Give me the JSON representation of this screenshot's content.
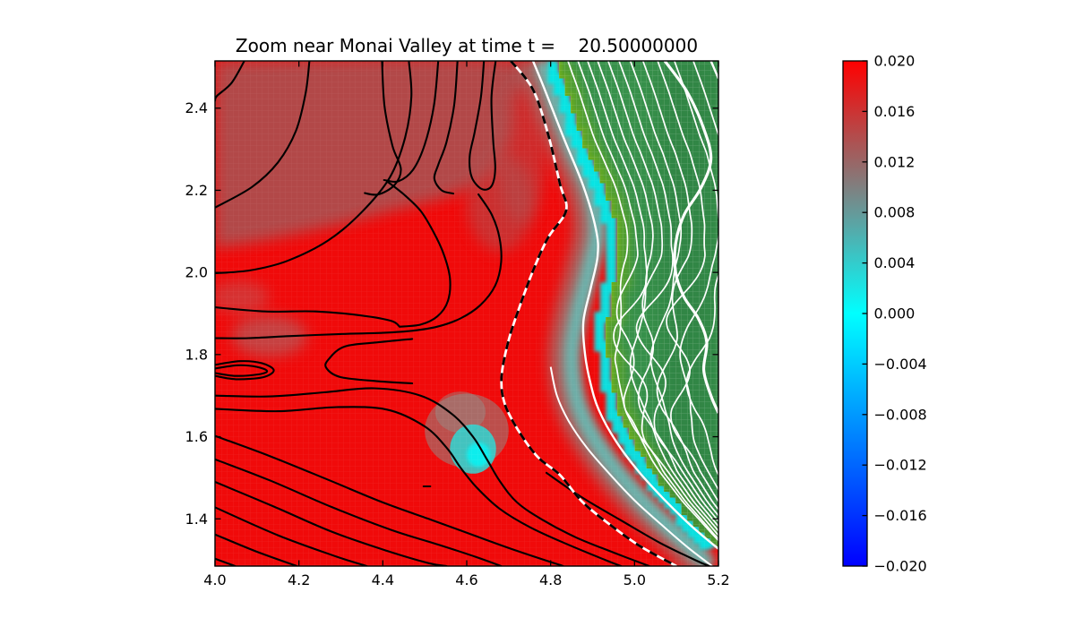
{
  "chart_data": {
    "type": "heatmap",
    "title": "Zoom near Monai Valley at time t =    20.50000000",
    "xlabel": "",
    "ylabel": "",
    "xlim": [
      4.0,
      5.2
    ],
    "ylim": [
      1.285,
      2.515
    ],
    "x_tick_values": [
      4.0,
      4.2,
      4.4,
      4.6,
      4.8,
      5.0,
      5.2
    ],
    "x_tick_labels": [
      "4.0",
      "4.2",
      "4.4",
      "4.6",
      "4.8",
      "5.0",
      "5.2"
    ],
    "y_tick_values": [
      1.4,
      1.6,
      1.8,
      2.0,
      2.2,
      2.4
    ],
    "y_tick_labels": [
      "1.4",
      "1.6",
      "1.8",
      "2.0",
      "2.2",
      "2.4"
    ],
    "grid": "pcolor-mesh",
    "legend": "none",
    "colorbar": {
      "position": "right",
      "vmin": -0.02,
      "vmax": 0.02,
      "tick_values": [
        0.02,
        0.016,
        0.012,
        0.008,
        0.004,
        0.0,
        -0.004,
        -0.008,
        -0.012,
        -0.016,
        -0.02
      ],
      "tick_labels": [
        "0.020",
        "0.016",
        "0.012",
        "0.008",
        "0.004",
        "0.000",
        "−0.004",
        "−0.008",
        "−0.012",
        "−0.016",
        "−0.020"
      ],
      "gradient": [
        {
          "offset": 0.0,
          "color": "#ff0000"
        },
        {
          "offset": 0.5,
          "color": "#00ffff"
        },
        {
          "offset": 1.0,
          "color": "#0000ff"
        }
      ]
    },
    "colors": {
      "water_red": "#f00a0a",
      "water_high": "#b04b4b",
      "shore_gray": "#9c7370",
      "shore_teal": "#5fc4bd",
      "shore_cyan": "#05e9e9",
      "land_green": "#38914b",
      "land_edge_green": "#7ab513",
      "land_dark_green": "#2b7c40",
      "contour_water": "#000000",
      "contour_land": "#ffffff",
      "frame": "#000000"
    },
    "coast": [
      [
        4.815,
        2.515
      ],
      [
        4.84,
        2.445
      ],
      [
        4.878,
        2.325
      ],
      [
        4.932,
        2.205
      ],
      [
        4.96,
        2.105
      ],
      [
        4.963,
        2.045
      ],
      [
        4.948,
        1.955
      ],
      [
        4.934,
        1.878
      ],
      [
        4.938,
        1.8
      ],
      [
        4.95,
        1.728
      ],
      [
        4.963,
        1.668
      ],
      [
        4.994,
        1.598
      ],
      [
        5.042,
        1.52
      ],
      [
        5.1,
        1.443
      ],
      [
        5.152,
        1.385
      ],
      [
        5.2,
        1.33
      ]
    ],
    "dashed_shoreline": [
      [
        4.705,
        2.515
      ],
      [
        4.758,
        2.445
      ],
      [
        4.794,
        2.336
      ],
      [
        4.822,
        2.216
      ],
      [
        4.837,
        2.151
      ],
      [
        4.794,
        2.085
      ],
      [
        4.76,
        2.009
      ],
      [
        4.728,
        1.922
      ],
      [
        4.7,
        1.835
      ],
      [
        4.683,
        1.747
      ],
      [
        4.69,
        1.682
      ],
      [
        4.722,
        1.617
      ],
      [
        4.769,
        1.551
      ],
      [
        4.822,
        1.507
      ],
      [
        4.875,
        1.442
      ],
      [
        4.94,
        1.387
      ],
      [
        5.014,
        1.333
      ],
      [
        5.1,
        1.285
      ]
    ],
    "zero_contour": [
      [
        4.758,
        2.515
      ],
      [
        4.788,
        2.44
      ],
      [
        4.832,
        2.325
      ],
      [
        4.878,
        2.21
      ],
      [
        4.908,
        2.105
      ],
      [
        4.912,
        2.04
      ],
      [
        4.895,
        1.96
      ],
      [
        4.878,
        1.88
      ],
      [
        4.882,
        1.8
      ],
      [
        4.895,
        1.73
      ],
      [
        4.915,
        1.665
      ],
      [
        4.955,
        1.59
      ],
      [
        5.01,
        1.515
      ],
      [
        5.07,
        1.448
      ],
      [
        5.135,
        1.383
      ],
      [
        5.2,
        1.327
      ]
    ],
    "sub_contour": [
      [
        4.8,
        1.77
      ],
      [
        4.815,
        1.7
      ],
      [
        4.842,
        1.64
      ],
      [
        4.885,
        1.575
      ],
      [
        4.94,
        1.51
      ],
      [
        5.0,
        1.445
      ],
      [
        5.065,
        1.385
      ],
      [
        5.13,
        1.328
      ],
      [
        5.185,
        1.285
      ]
    ],
    "thick_land_contour": [
      [
        5.072,
        2.515
      ],
      [
        5.125,
        2.44
      ],
      [
        5.165,
        2.35
      ],
      [
        5.182,
        2.275
      ],
      [
        5.158,
        2.205
      ],
      [
        5.118,
        2.14
      ],
      [
        5.098,
        2.07
      ],
      [
        5.098,
        2.0
      ],
      [
        5.118,
        1.94
      ],
      [
        5.152,
        1.888
      ],
      [
        5.172,
        1.83
      ],
      [
        5.165,
        1.762
      ],
      [
        5.182,
        1.7
      ],
      [
        5.2,
        1.658
      ]
    ],
    "corner_contour": [
      [
        5.182,
        2.515
      ],
      [
        5.2,
        2.472
      ]
    ],
    "land_contour_offsets": [
      0.026,
      0.05,
      0.073,
      0.097,
      0.122,
      0.148,
      0.175,
      0.205,
      0.24,
      0.28,
      0.325
    ],
    "high_region": [
      [
        4.0,
        2.515
      ],
      [
        4.72,
        2.515
      ],
      [
        4.71,
        2.42
      ],
      [
        4.7,
        2.32
      ],
      [
        4.65,
        2.24
      ],
      [
        4.58,
        2.195
      ],
      [
        4.5,
        2.17
      ],
      [
        4.42,
        2.15
      ],
      [
        4.33,
        2.125
      ],
      [
        4.22,
        2.1
      ],
      [
        4.1,
        2.075
      ],
      [
        4.0,
        2.06
      ]
    ],
    "gray_band": [
      [
        4.76,
        2.515
      ],
      [
        4.79,
        2.42
      ],
      [
        4.83,
        2.31
      ],
      [
        4.875,
        2.2
      ],
      [
        4.89,
        2.1
      ],
      [
        4.87,
        2.0
      ],
      [
        4.845,
        1.9
      ],
      [
        4.83,
        1.8
      ],
      [
        4.84,
        1.7
      ],
      [
        4.87,
        1.62
      ],
      [
        4.92,
        1.54
      ],
      [
        4.975,
        1.47
      ],
      [
        5.04,
        1.4
      ],
      [
        5.11,
        1.335
      ],
      [
        5.16,
        1.285
      ]
    ],
    "smudges": [
      {
        "x": 4.13,
        "y": 1.845,
        "rx": 0.09,
        "ry": 0.05,
        "c": "#9b7a7a",
        "o": 0.5,
        "b": 8
      },
      {
        "x": 4.06,
        "y": 1.94,
        "rx": 0.07,
        "ry": 0.04,
        "c": "#a57f7f",
        "o": 0.35,
        "b": 8
      },
      {
        "x": 4.68,
        "y": 2.17,
        "rx": 0.08,
        "ry": 0.12,
        "c": "#a85555",
        "o": 0.5,
        "b": 8
      },
      {
        "x": 4.73,
        "y": 2.3,
        "rx": 0.06,
        "ry": 0.18,
        "c": "#a85555",
        "o": 0.45,
        "b": 8
      },
      {
        "x": 4.6,
        "y": 1.615,
        "rx": 0.1,
        "ry": 0.09,
        "c": "#7fa29b",
        "o": 0.45,
        "b": 7
      },
      {
        "x": 4.585,
        "y": 1.66,
        "rx": 0.06,
        "ry": 0.05,
        "c": "#8c9b94",
        "o": 0.4,
        "b": 7
      },
      {
        "x": 4.615,
        "y": 1.57,
        "rx": 0.055,
        "ry": 0.06,
        "c": "#2fd8d4",
        "o": 0.85,
        "b": 4
      },
      {
        "x": 4.628,
        "y": 1.556,
        "rx": 0.028,
        "ry": 0.03,
        "c": "#10eded",
        "o": 1.0,
        "b": 2
      }
    ],
    "black_contours": [
      [
        [
          4.07,
          2.515
        ],
        [
          4.04,
          2.462
        ],
        [
          4.005,
          2.43
        ],
        [
          4.0,
          2.418
        ]
      ],
      [
        [
          4.225,
          2.515
        ],
        [
          4.216,
          2.437
        ],
        [
          4.193,
          2.345
        ],
        [
          4.15,
          2.268
        ],
        [
          4.088,
          2.208
        ],
        [
          4.0,
          2.158
        ]
      ],
      [
        [
          4.462,
          2.515
        ],
        [
          4.468,
          2.428
        ],
        [
          4.453,
          2.328
        ],
        [
          4.417,
          2.232
        ],
        [
          4.35,
          2.147
        ],
        [
          4.27,
          2.078
        ],
        [
          4.172,
          2.028
        ],
        [
          4.083,
          2.005
        ],
        [
          4.0,
          1.998
        ]
      ],
      [
        [
          4.398,
          2.515
        ],
        [
          4.404,
          2.405
        ],
        [
          4.423,
          2.308
        ],
        [
          4.443,
          2.252
        ],
        [
          4.428,
          2.213
        ],
        [
          4.39,
          2.19
        ],
        [
          4.357,
          2.193
        ]
      ],
      [
        [
          4.532,
          2.515
        ],
        [
          4.522,
          2.408
        ],
        [
          4.5,
          2.312
        ],
        [
          4.472,
          2.25
        ],
        [
          4.437,
          2.222
        ],
        [
          4.403,
          2.225
        ]
      ],
      [
        [
          4.578,
          2.515
        ],
        [
          4.57,
          2.408
        ],
        [
          4.552,
          2.318
        ],
        [
          4.532,
          2.262
        ],
        [
          4.523,
          2.228
        ],
        [
          4.54,
          2.2
        ],
        [
          4.568,
          2.192
        ]
      ],
      [
        [
          4.641,
          2.515
        ],
        [
          4.634,
          2.428
        ],
        [
          4.619,
          2.342
        ],
        [
          4.607,
          2.282
        ],
        [
          4.612,
          2.232
        ],
        [
          4.636,
          2.203
        ],
        [
          4.659,
          2.21
        ],
        [
          4.668,
          2.252
        ],
        [
          4.663,
          2.322
        ],
        [
          4.659,
          2.425
        ],
        [
          4.669,
          2.515
        ]
      ],
      [
        [
          4.41,
          2.222
        ],
        [
          4.45,
          2.19
        ],
        [
          4.49,
          2.15
        ],
        [
          4.52,
          2.1
        ],
        [
          4.545,
          2.045
        ],
        [
          4.56,
          1.985
        ],
        [
          4.555,
          1.93
        ],
        [
          4.53,
          1.893
        ],
        [
          4.49,
          1.873
        ],
        [
          4.44,
          1.868
        ]
      ],
      [
        [
          4.628,
          2.19
        ],
        [
          4.66,
          2.14
        ],
        [
          4.678,
          2.085
        ],
        [
          4.682,
          2.025
        ],
        [
          4.668,
          1.968
        ],
        [
          4.632,
          1.92
        ],
        [
          4.585,
          1.888
        ],
        [
          4.53,
          1.868
        ],
        [
          4.47,
          1.858
        ],
        [
          4.4,
          1.853
        ],
        [
          4.3,
          1.85
        ],
        [
          4.18,
          1.845
        ],
        [
          4.08,
          1.84
        ],
        [
          4.0,
          1.84
        ]
      ],
      [
        [
          4.0,
          1.915
        ],
        [
          4.12,
          1.905
        ],
        [
          4.24,
          1.905
        ],
        [
          4.35,
          1.895
        ],
        [
          4.42,
          1.882
        ],
        [
          4.44,
          1.868
        ]
      ],
      [
        [
          4.47,
          1.838
        ],
        [
          4.39,
          1.83
        ],
        [
          4.31,
          1.82
        ],
        [
          4.272,
          1.79
        ],
        [
          4.265,
          1.768
        ],
        [
          4.3,
          1.745
        ],
        [
          4.39,
          1.735
        ],
        [
          4.47,
          1.73
        ]
      ],
      [
        [
          4.0,
          1.775
        ],
        [
          4.06,
          1.784
        ],
        [
          4.112,
          1.779
        ],
        [
          4.14,
          1.762
        ],
        [
          4.115,
          1.745
        ],
        [
          4.05,
          1.74
        ],
        [
          4.0,
          1.748
        ]
      ],
      [
        [
          4.0,
          1.766
        ],
        [
          4.055,
          1.774
        ],
        [
          4.1,
          1.77
        ],
        [
          4.124,
          1.76
        ],
        [
          4.105,
          1.752
        ],
        [
          4.05,
          1.748
        ],
        [
          4.0,
          1.755
        ]
      ],
      [
        [
          4.0,
          1.7
        ],
        [
          4.13,
          1.698
        ],
        [
          4.26,
          1.708
        ],
        [
          4.38,
          1.718
        ],
        [
          4.49,
          1.7
        ],
        [
          4.565,
          1.655
        ],
        [
          4.615,
          1.6
        ],
        [
          4.648,
          1.545
        ],
        [
          4.68,
          1.49
        ],
        [
          4.72,
          1.44
        ],
        [
          4.78,
          1.398
        ],
        [
          4.86,
          1.355
        ],
        [
          4.95,
          1.318
        ],
        [
          5.035,
          1.285
        ]
      ],
      [
        [
          4.0,
          1.668
        ],
        [
          4.15,
          1.662
        ],
        [
          4.29,
          1.672
        ],
        [
          4.41,
          1.666
        ],
        [
          4.5,
          1.625
        ],
        [
          4.553,
          1.572
        ],
        [
          4.585,
          1.525
        ],
        [
          4.625,
          1.475
        ],
        [
          4.678,
          1.425
        ],
        [
          4.75,
          1.38
        ],
        [
          4.84,
          1.338
        ],
        [
          4.93,
          1.3
        ],
        [
          4.968,
          1.285
        ]
      ],
      [
        [
          4.0,
          1.602
        ],
        [
          4.13,
          1.553
        ],
        [
          4.27,
          1.495
        ],
        [
          4.4,
          1.44
        ],
        [
          4.52,
          1.396
        ],
        [
          4.63,
          1.355
        ],
        [
          4.72,
          1.322
        ],
        [
          4.83,
          1.285
        ]
      ],
      [
        [
          4.0,
          1.545
        ],
        [
          4.13,
          1.494
        ],
        [
          4.28,
          1.428
        ],
        [
          4.42,
          1.373
        ],
        [
          4.53,
          1.338
        ],
        [
          4.62,
          1.308
        ],
        [
          4.682,
          1.285
        ]
      ],
      [
        [
          4.0,
          1.49
        ],
        [
          4.14,
          1.43
        ],
        [
          4.28,
          1.368
        ],
        [
          4.41,
          1.322
        ],
        [
          4.51,
          1.292
        ],
        [
          4.552,
          1.285
        ]
      ],
      [
        [
          4.0,
          1.428
        ],
        [
          4.15,
          1.36
        ],
        [
          4.29,
          1.308
        ],
        [
          4.362,
          1.285
        ]
      ],
      [
        [
          4.0,
          1.362
        ],
        [
          4.1,
          1.32
        ],
        [
          4.195,
          1.285
        ]
      ],
      [
        [
          4.0,
          1.303
        ],
        [
          4.048,
          1.285
        ]
      ],
      [
        [
          4.79,
          1.512
        ],
        [
          4.875,
          1.452
        ],
        [
          4.965,
          1.398
        ],
        [
          5.06,
          1.342
        ],
        [
          5.148,
          1.298
        ],
        [
          5.178,
          1.285
        ]
      ],
      [
        [
          4.497,
          1.479
        ],
        [
          4.513,
          1.479
        ]
      ]
    ]
  }
}
